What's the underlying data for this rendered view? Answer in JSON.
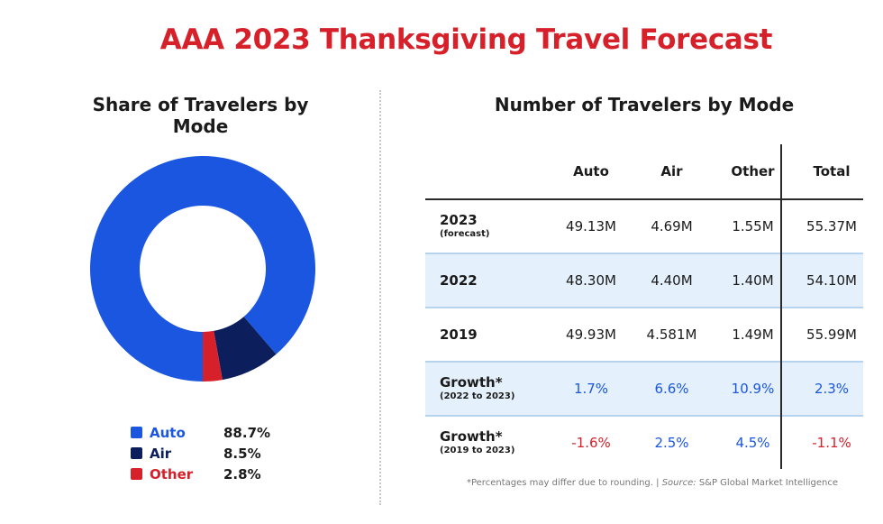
{
  "title": "AAA 2023 Thanksgiving Travel Forecast",
  "left_title": "Share of Travelers by Mode",
  "right_title": "Number of Travelers by Mode",
  "colors": {
    "auto": "#1a56e0",
    "air": "#0c1f5c",
    "other": "#d6212b",
    "negative": "#d6212b",
    "positive_growth": "#1a56e0"
  },
  "legend": [
    {
      "label": "Auto",
      "value": "88.7%"
    },
    {
      "label": "Air",
      "value": "8.5%"
    },
    {
      "label": "Other",
      "value": "2.8%"
    }
  ],
  "table": {
    "headers": [
      "",
      "Auto",
      "Air",
      "Other",
      "Total"
    ],
    "rows": [
      {
        "label": "2023",
        "sub": "(forecast)",
        "values": [
          "49.13M",
          "4.69M",
          "1.55M",
          "55.37M"
        ]
      },
      {
        "label": "2022",
        "sub": "",
        "values": [
          "48.30M",
          "4.40M",
          "1.40M",
          "54.10M"
        ]
      },
      {
        "label": "2019",
        "sub": "",
        "values": [
          "49.93M",
          "4.581M",
          "1.49M",
          "55.99M"
        ]
      },
      {
        "label": "Growth*",
        "sub": "(2022 to 2023)",
        "values": [
          "1.7%",
          "6.6%",
          "10.9%",
          "2.3%"
        ]
      },
      {
        "label": "Growth*",
        "sub": "(2019 to 2023)",
        "values": [
          "-1.6%",
          "2.5%",
          "4.5%",
          "-1.1%"
        ]
      }
    ]
  },
  "footnote": {
    "text": "*Percentages may differ due to rounding. | ",
    "source_label": "Source:",
    "source": " S&P Global Market Intelligence"
  },
  "chart_data": [
    {
      "type": "pie",
      "title": "Share of Travelers by Mode",
      "categories": [
        "Auto",
        "Air",
        "Other"
      ],
      "values": [
        88.7,
        8.5,
        2.8
      ],
      "donut": true
    },
    {
      "type": "table",
      "title": "Number of Travelers by Mode",
      "columns": [
        "Auto",
        "Air",
        "Other",
        "Total"
      ],
      "rows": [
        {
          "name": "2023 (forecast)",
          "values": [
            "49.13M",
            "4.69M",
            "1.55M",
            "55.37M"
          ]
        },
        {
          "name": "2022",
          "values": [
            "48.30M",
            "4.40M",
            "1.40M",
            "54.10M"
          ]
        },
        {
          "name": "2019",
          "values": [
            "49.93M",
            "4.581M",
            "1.49M",
            "55.99M"
          ]
        },
        {
          "name": "Growth* (2022 to 2023)",
          "values": [
            "1.7%",
            "6.6%",
            "10.9%",
            "2.3%"
          ]
        },
        {
          "name": "Growth* (2019 to 2023)",
          "values": [
            "-1.6%",
            "2.5%",
            "4.5%",
            "-1.1%"
          ]
        }
      ]
    }
  ]
}
